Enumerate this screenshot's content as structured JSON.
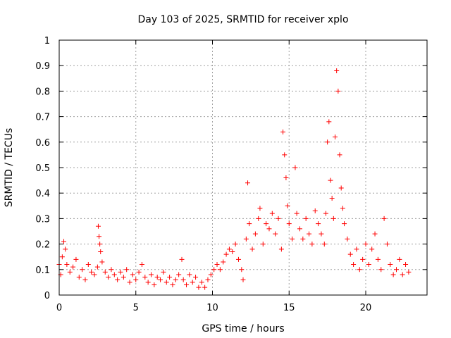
{
  "chart_data": {
    "type": "scatter",
    "title": "Day 103 of 2025, SRMTID for receiver xplo",
    "xlabel": "GPS time / hours",
    "ylabel": "SRMTID / TECUs",
    "xlim": [
      0,
      24
    ],
    "ylim": [
      0,
      1
    ],
    "xticks": [
      0,
      5,
      10,
      15,
      20
    ],
    "xtick_labels": [
      "0",
      "5",
      "10",
      "15",
      "20"
    ],
    "yticks": [
      0,
      0.1,
      0.2,
      0.3,
      0.4,
      0.5,
      0.6,
      0.7,
      0.8,
      0.9,
      1
    ],
    "ytick_labels": [
      "0",
      "0.1",
      "0.2",
      "0.3",
      "0.4",
      "0.5",
      "0.6",
      "0.7",
      "0.8",
      "0.9",
      "1"
    ],
    "grid": true,
    "marker": "+",
    "marker_color": "#ff0000",
    "series": [
      {
        "name": "SRMTID",
        "points": [
          [
            0.0,
            0.12
          ],
          [
            0.1,
            0.08
          ],
          [
            0.2,
            0.15
          ],
          [
            0.3,
            0.21
          ],
          [
            0.4,
            0.18
          ],
          [
            0.5,
            0.12
          ],
          [
            0.7,
            0.09
          ],
          [
            0.9,
            0.11
          ],
          [
            1.1,
            0.14
          ],
          [
            1.3,
            0.07
          ],
          [
            1.5,
            0.1
          ],
          [
            1.7,
            0.06
          ],
          [
            1.9,
            0.12
          ],
          [
            2.1,
            0.09
          ],
          [
            2.3,
            0.08
          ],
          [
            2.5,
            0.11
          ],
          [
            2.55,
            0.27
          ],
          [
            2.6,
            0.23
          ],
          [
            2.65,
            0.2
          ],
          [
            2.7,
            0.17
          ],
          [
            2.8,
            0.13
          ],
          [
            3.0,
            0.09
          ],
          [
            3.2,
            0.07
          ],
          [
            3.4,
            0.1
          ],
          [
            3.6,
            0.08
          ],
          [
            3.8,
            0.06
          ],
          [
            4.0,
            0.09
          ],
          [
            4.2,
            0.07
          ],
          [
            4.4,
            0.1
          ],
          [
            4.6,
            0.05
          ],
          [
            4.8,
            0.08
          ],
          [
            5.0,
            0.06
          ],
          [
            5.2,
            0.09
          ],
          [
            5.4,
            0.12
          ],
          [
            5.6,
            0.07
          ],
          [
            5.8,
            0.05
          ],
          [
            6.0,
            0.08
          ],
          [
            6.2,
            0.04
          ],
          [
            6.4,
            0.07
          ],
          [
            6.6,
            0.06
          ],
          [
            6.8,
            0.09
          ],
          [
            7.0,
            0.05
          ],
          [
            7.2,
            0.07
          ],
          [
            7.4,
            0.04
          ],
          [
            7.6,
            0.06
          ],
          [
            7.8,
            0.08
          ],
          [
            8.0,
            0.14
          ],
          [
            8.1,
            0.06
          ],
          [
            8.3,
            0.04
          ],
          [
            8.5,
            0.08
          ],
          [
            8.7,
            0.05
          ],
          [
            8.9,
            0.07
          ],
          [
            9.1,
            0.03
          ],
          [
            9.3,
            0.05
          ],
          [
            9.5,
            0.03
          ],
          [
            9.7,
            0.06
          ],
          [
            9.9,
            0.08
          ],
          [
            10.1,
            0.1
          ],
          [
            10.3,
            0.12
          ],
          [
            10.5,
            0.1
          ],
          [
            10.7,
            0.13
          ],
          [
            10.9,
            0.16
          ],
          [
            11.1,
            0.18
          ],
          [
            11.3,
            0.17
          ],
          [
            11.5,
            0.2
          ],
          [
            11.7,
            0.14
          ],
          [
            11.9,
            0.1
          ],
          [
            12.0,
            0.06
          ],
          [
            12.2,
            0.22
          ],
          [
            12.3,
            0.44
          ],
          [
            12.4,
            0.28
          ],
          [
            12.6,
            0.18
          ],
          [
            12.8,
            0.24
          ],
          [
            13.0,
            0.3
          ],
          [
            13.1,
            0.34
          ],
          [
            13.3,
            0.2
          ],
          [
            13.5,
            0.28
          ],
          [
            13.7,
            0.26
          ],
          [
            13.9,
            0.32
          ],
          [
            14.1,
            0.24
          ],
          [
            14.3,
            0.3
          ],
          [
            14.5,
            0.18
          ],
          [
            14.6,
            0.64
          ],
          [
            14.7,
            0.55
          ],
          [
            14.8,
            0.46
          ],
          [
            14.9,
            0.35
          ],
          [
            15.0,
            0.28
          ],
          [
            15.2,
            0.22
          ],
          [
            15.4,
            0.5
          ],
          [
            15.5,
            0.32
          ],
          [
            15.7,
            0.26
          ],
          [
            15.9,
            0.22
          ],
          [
            16.1,
            0.3
          ],
          [
            16.3,
            0.24
          ],
          [
            16.5,
            0.2
          ],
          [
            16.7,
            0.33
          ],
          [
            16.9,
            0.28
          ],
          [
            17.1,
            0.24
          ],
          [
            17.3,
            0.2
          ],
          [
            17.4,
            0.32
          ],
          [
            17.5,
            0.6
          ],
          [
            17.6,
            0.68
          ],
          [
            17.7,
            0.45
          ],
          [
            17.8,
            0.38
          ],
          [
            17.9,
            0.3
          ],
          [
            18.0,
            0.62
          ],
          [
            18.1,
            0.88
          ],
          [
            18.2,
            0.8
          ],
          [
            18.3,
            0.55
          ],
          [
            18.4,
            0.42
          ],
          [
            18.5,
            0.34
          ],
          [
            18.6,
            0.28
          ],
          [
            18.8,
            0.22
          ],
          [
            19.0,
            0.16
          ],
          [
            19.2,
            0.12
          ],
          [
            19.4,
            0.18
          ],
          [
            19.6,
            0.1
          ],
          [
            19.8,
            0.14
          ],
          [
            20.0,
            0.2
          ],
          [
            20.2,
            0.12
          ],
          [
            20.4,
            0.18
          ],
          [
            20.6,
            0.24
          ],
          [
            20.8,
            0.14
          ],
          [
            21.0,
            0.1
          ],
          [
            21.2,
            0.3
          ],
          [
            21.4,
            0.2
          ],
          [
            21.6,
            0.12
          ],
          [
            21.8,
            0.08
          ],
          [
            22.0,
            0.1
          ],
          [
            22.2,
            0.14
          ],
          [
            22.4,
            0.08
          ],
          [
            22.6,
            0.12
          ],
          [
            22.8,
            0.09
          ]
        ]
      }
    ]
  }
}
